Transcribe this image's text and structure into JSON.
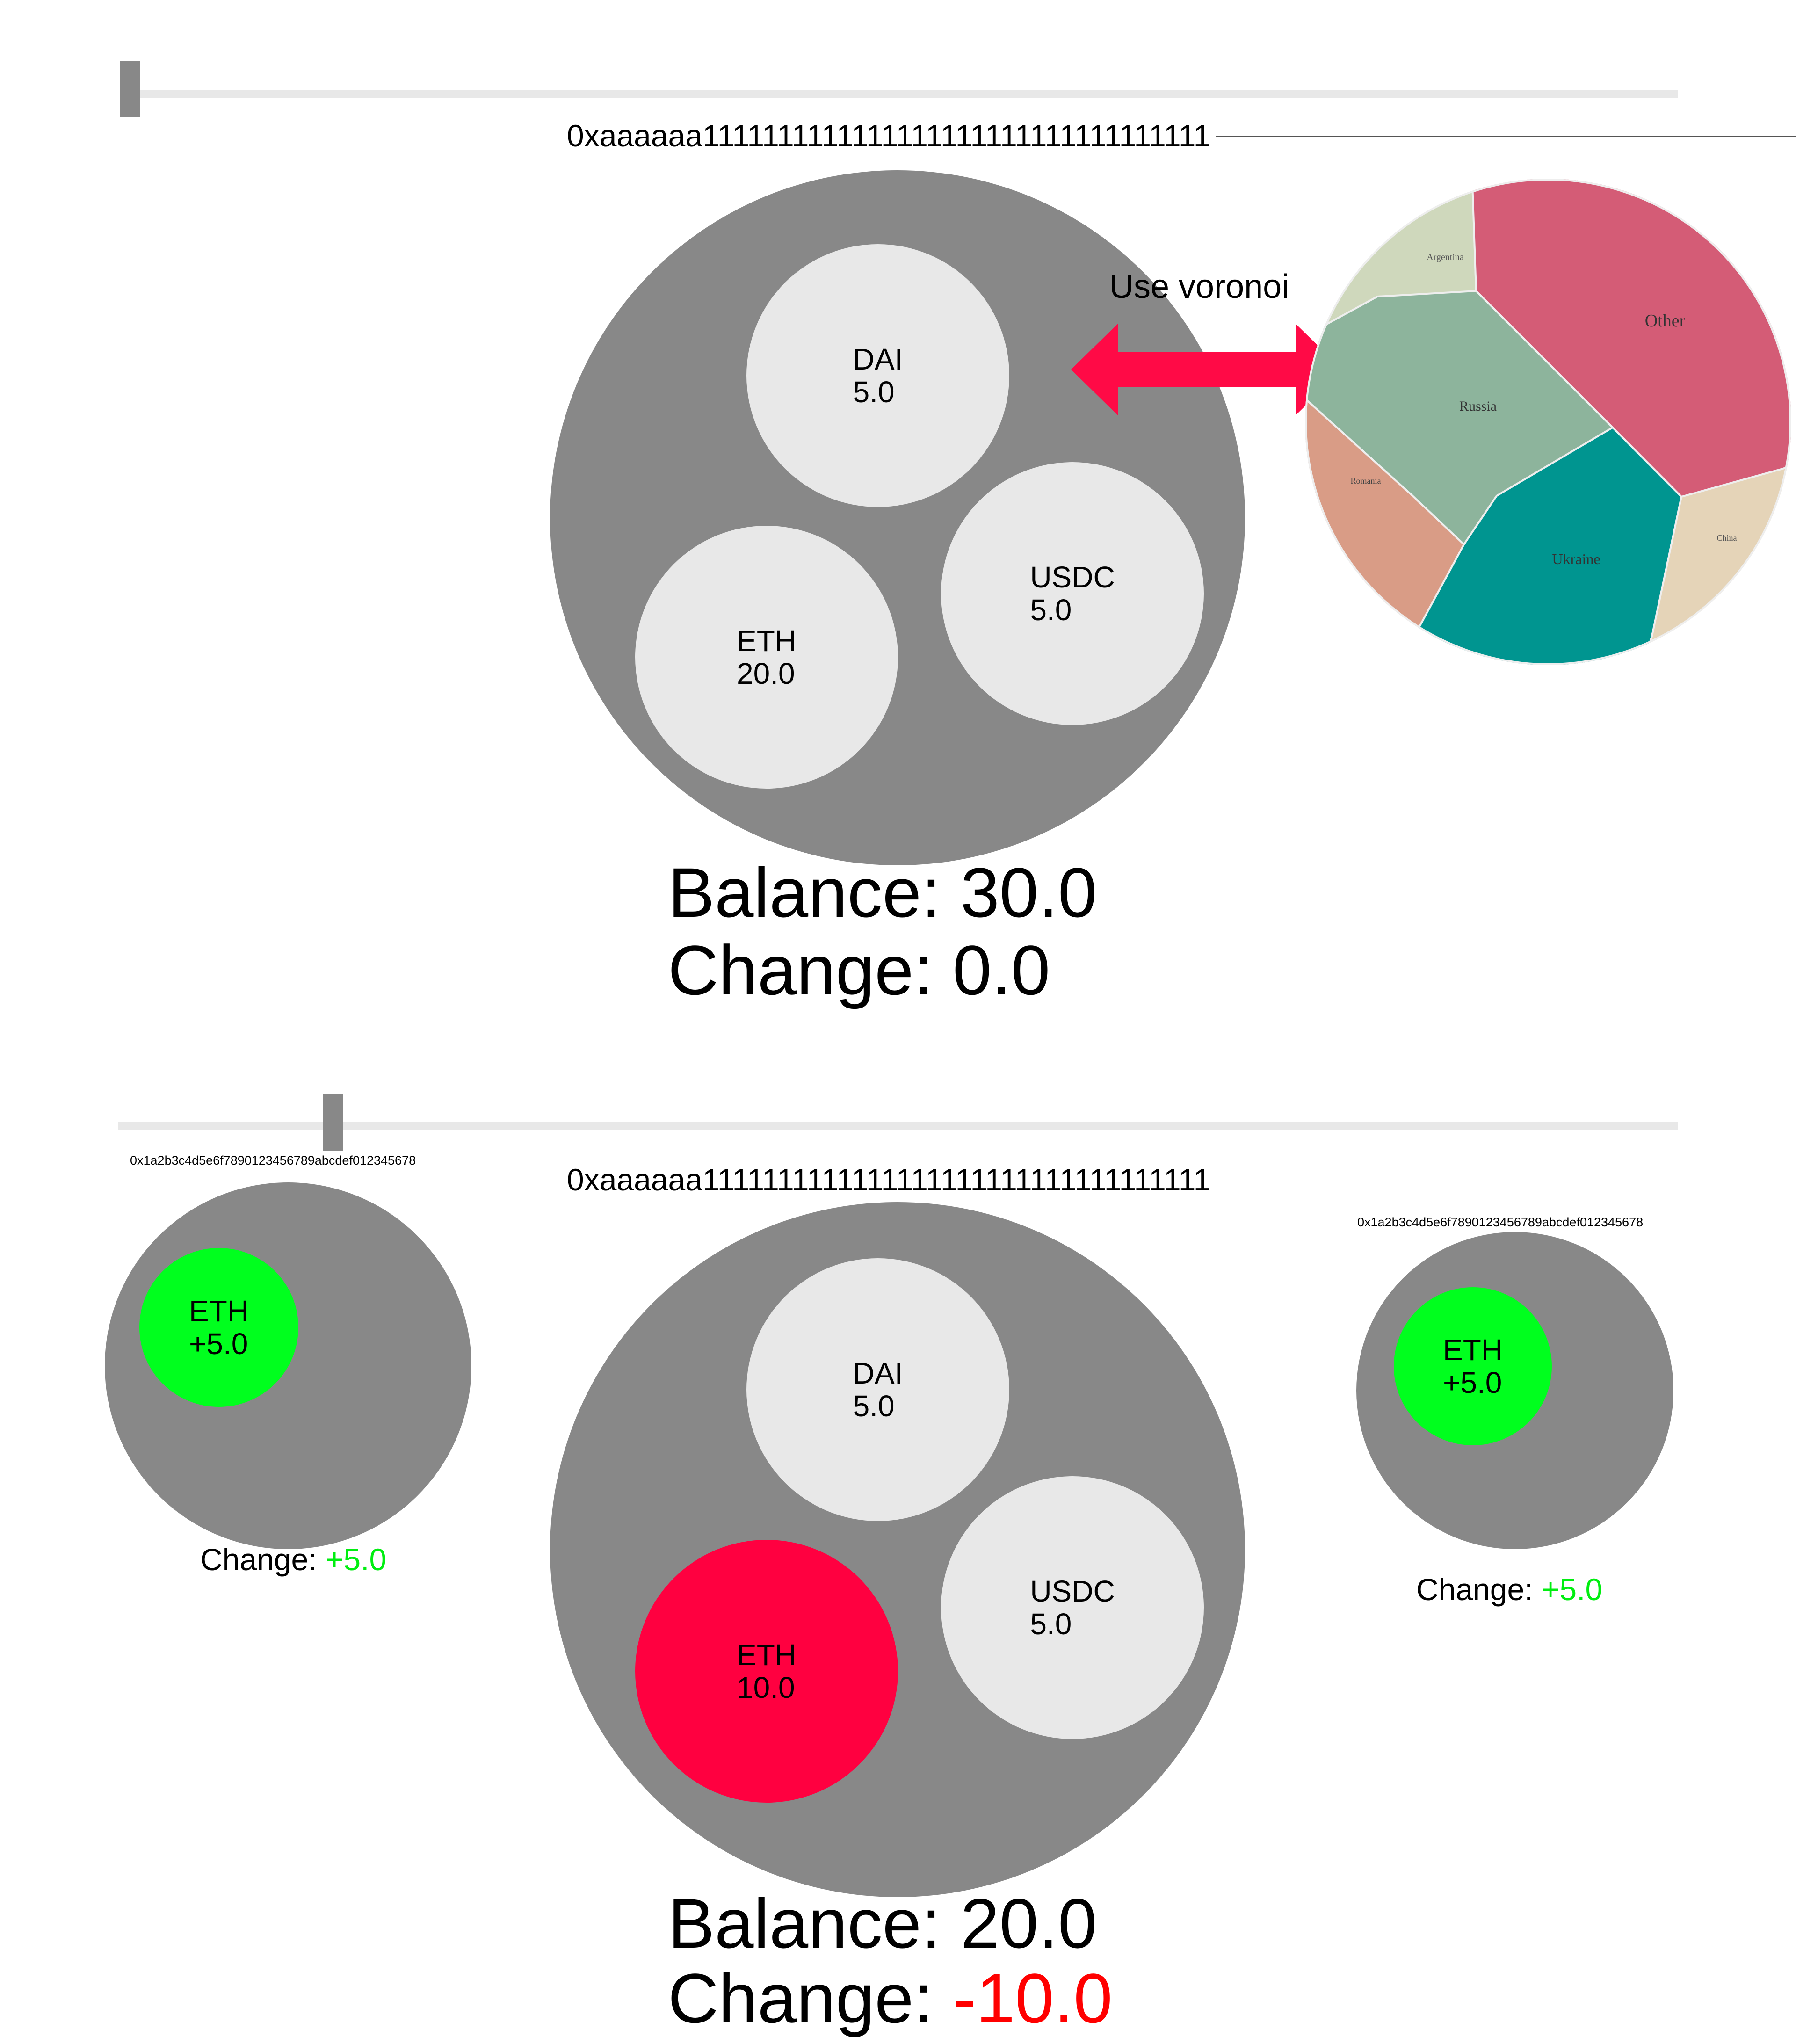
{
  "colors": {
    "wallet": "#888888",
    "token_default": "#e8e8e8",
    "token_decrease": "#ff0040",
    "token_increase": "#00ff1e",
    "positive_text": "#00ee10",
    "negative_text": "#ff0000",
    "arrow": "#ff0a46",
    "track": "#e8e8e8"
  },
  "top_panel": {
    "address": "0xaaaaaa1111111111111111111111111111111111",
    "tokens": [
      {
        "name": "DAI",
        "amount": "5.0"
      },
      {
        "name": "USDC",
        "amount": "5.0"
      },
      {
        "name": "ETH",
        "amount": "20.0"
      }
    ],
    "balance_label": "Balance:",
    "balance_value": "30.0",
    "change_label": "Change:",
    "change_value": "0.0"
  },
  "annotation": {
    "note": "Use voronoi",
    "arrow_icon": "double-arrow-icon"
  },
  "voronoi_chart": {
    "chart_data": {
      "type": "voronoi",
      "cells": [
        {
          "label": "Other",
          "color": "#d45c76"
        },
        {
          "label": "Russia",
          "color": "#8db49c"
        },
        {
          "label": "Ukraine",
          "color": "#009590"
        },
        {
          "label": "Argentina",
          "color": "#cfd8bc"
        },
        {
          "label": "Romania",
          "color": "#d99c86"
        },
        {
          "label": "China",
          "color": "#e5d4b8"
        }
      ]
    }
  },
  "bottom_panel": {
    "address": "0xaaaaaa1111111111111111111111111111111111",
    "tokens": [
      {
        "name": "DAI",
        "amount": "5.0"
      },
      {
        "name": "USDC",
        "amount": "5.0"
      },
      {
        "name": "ETH",
        "amount": "10.0"
      }
    ],
    "balance_label": "Balance:",
    "balance_value": "20.0",
    "change_label": "Change:",
    "change_value": "-10.0"
  },
  "left_wallet": {
    "address": "0x1a2b3c4d5e6f7890123456789abcdef012345678",
    "token": {
      "name": "ETH",
      "amount": "+5.0"
    },
    "change_label": "Change:",
    "change_value": "+5.0"
  },
  "right_wallet": {
    "address": "0x1a2b3c4d5e6f7890123456789abcdef012345678",
    "token": {
      "name": "ETH",
      "amount": "+5.0"
    },
    "change_label": "Change:",
    "change_value": "+5.0"
  }
}
